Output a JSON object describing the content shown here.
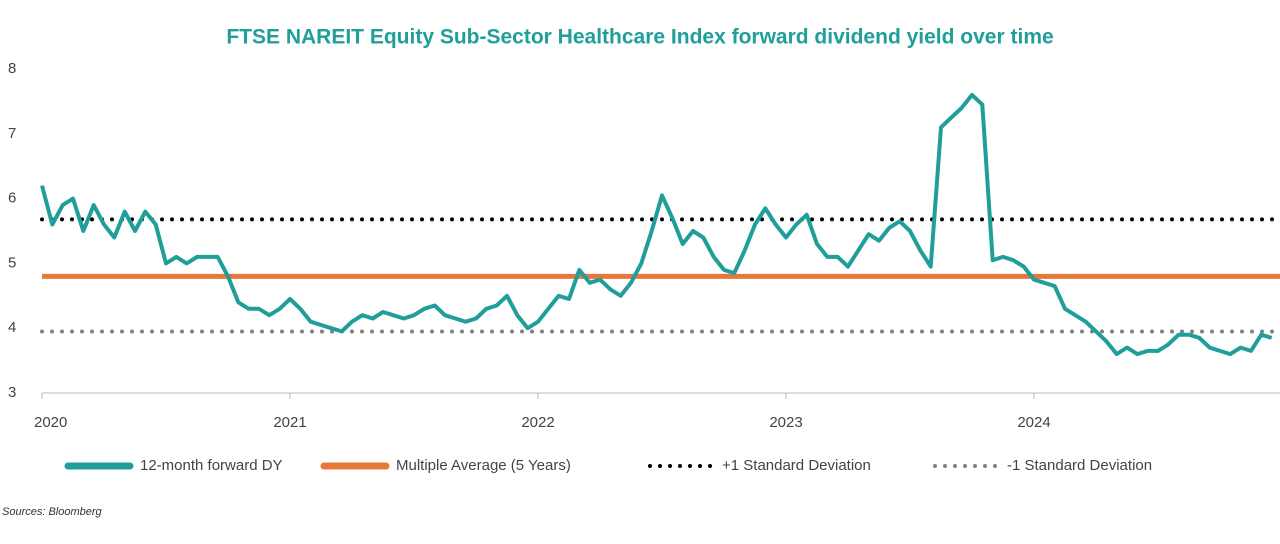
{
  "chart_data": {
    "type": "line",
    "title": "FTSE NAREIT Equity Sub-Sector Healthcare Index forward dividend yield over time",
    "source": "Sources: Bloomberg",
    "categories": [
      "2020",
      null,
      null,
      null,
      null,
      null,
      null,
      null,
      null,
      null,
      null,
      null,
      null,
      null,
      null,
      null,
      null,
      null,
      null,
      null,
      null,
      null,
      null,
      null,
      "2021",
      null,
      null,
      null,
      null,
      null,
      null,
      null,
      null,
      null,
      null,
      null,
      null,
      null,
      null,
      null,
      null,
      null,
      null,
      null,
      null,
      null,
      null,
      null,
      "2022",
      null,
      null,
      null,
      null,
      null,
      null,
      null,
      null,
      null,
      null,
      null,
      null,
      null,
      null,
      null,
      null,
      null,
      null,
      null,
      null,
      null,
      null,
      null,
      "2023",
      null,
      null,
      null,
      null,
      null,
      null,
      null,
      null,
      null,
      null,
      null,
      null,
      null,
      null,
      null,
      null,
      null,
      null,
      null,
      null,
      null,
      null,
      null,
      "2024",
      null,
      null,
      null,
      null,
      null,
      null,
      null,
      null,
      null,
      null,
      null,
      null,
      null,
      null,
      null,
      null,
      null,
      null,
      null,
      null,
      null,
      null,
      null
    ],
    "series": [
      {
        "name": "12-month forward DY",
        "color": "#1f9e9a",
        "values": [
          6.2,
          5.6,
          5.9,
          6.0,
          5.5,
          5.9,
          5.6,
          5.4,
          5.8,
          5.5,
          5.8,
          5.6,
          5.0,
          5.1,
          5.0,
          5.1,
          5.1,
          5.1,
          4.8,
          4.4,
          4.3,
          4.3,
          4.2,
          4.3,
          4.45,
          4.3,
          4.1,
          4.05,
          4.0,
          3.95,
          4.1,
          4.2,
          4.15,
          4.25,
          4.2,
          4.15,
          4.2,
          4.3,
          4.35,
          4.2,
          4.15,
          4.1,
          4.15,
          4.3,
          4.35,
          4.5,
          4.2,
          4.0,
          4.1,
          4.3,
          4.5,
          4.45,
          4.9,
          4.7,
          4.75,
          4.6,
          4.5,
          4.7,
          5.0,
          5.5,
          6.05,
          5.7,
          5.3,
          5.5,
          5.4,
          5.1,
          4.9,
          4.85,
          5.2,
          5.6,
          5.85,
          5.6,
          5.4,
          5.6,
          5.75,
          5.3,
          5.1,
          5.1,
          4.95,
          5.2,
          5.45,
          5.35,
          5.55,
          5.65,
          5.5,
          5.2,
          4.95,
          7.1,
          7.25,
          7.4,
          7.6,
          7.45,
          5.05,
          5.1,
          5.05,
          4.95,
          4.75,
          4.7,
          4.65,
          4.3,
          4.2,
          4.1,
          3.95,
          3.8,
          3.6,
          3.7,
          3.6,
          3.65,
          3.65,
          3.75,
          3.9,
          3.9,
          3.85,
          3.7,
          3.65,
          3.6,
          3.7,
          3.65,
          3.9,
          3.85
        ]
      }
    ],
    "reference_lines": [
      {
        "name": "Multiple Average (5 Years)",
        "color": "#e8773a",
        "value": 4.8,
        "style": "solid"
      },
      {
        "name": "+1 Standard Deviation",
        "color": "#000000",
        "value": 5.68,
        "style": "dotted"
      },
      {
        "name": "-1 Standard Deviation",
        "color": "#808080",
        "value": 3.95,
        "style": "dotted"
      }
    ],
    "ylim": [
      3,
      8
    ],
    "yticks": [
      3,
      4,
      5,
      6,
      7,
      8
    ],
    "grid": false
  }
}
